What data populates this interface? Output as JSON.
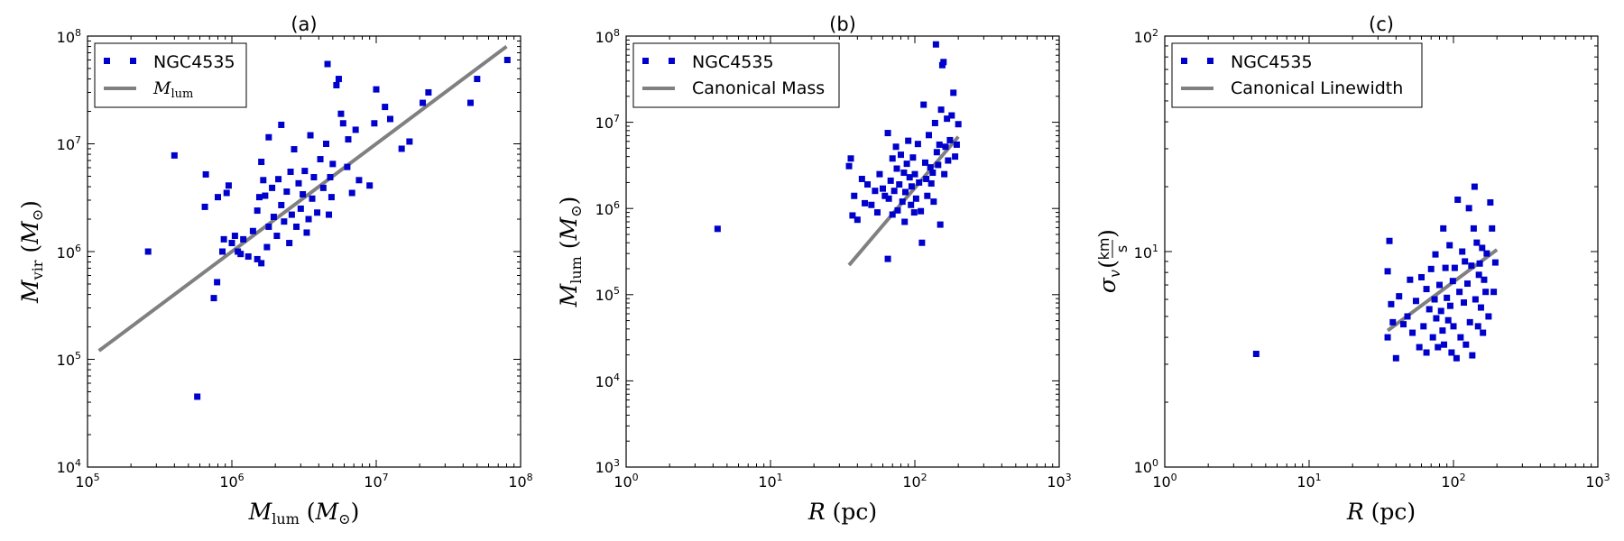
{
  "colors": {
    "point": "#0000cc",
    "fit_line": "#808080"
  },
  "chart_data": [
    {
      "type": "scatter",
      "panel": "(a)",
      "title": "(a)",
      "xlabel": "M_lum (M_⊙)",
      "ylabel": "M_vir (M_⊙)",
      "xscale": "log",
      "yscale": "log",
      "xlim": [
        100000,
        100000000
      ],
      "ylim": [
        10000,
        100000000
      ],
      "xticks": [
        "10^5",
        "10^6",
        "10^7",
        "10^8"
      ],
      "yticks": [
        "10^4",
        "10^5",
        "10^6",
        "10^7",
        "10^8"
      ],
      "legend_position": "top-left",
      "legend": [
        "NGC4535",
        "M_lum"
      ],
      "series": [
        {
          "name": "NGC4535",
          "kind": "points",
          "points": [
            [
              263000,
              1000000
            ],
            [
              576000,
              45000
            ],
            [
              400000,
              7800000
            ],
            [
              650000,
              2600000
            ],
            [
              660000,
              5200000
            ],
            [
              750000,
              370000
            ],
            [
              790000,
              520000
            ],
            [
              800000,
              3200000
            ],
            [
              860000,
              1000000
            ],
            [
              880000,
              1300000
            ],
            [
              920000,
              3500000
            ],
            [
              950000,
              4100000
            ],
            [
              1000000,
              1200000
            ],
            [
              1050000,
              1400000
            ],
            [
              1100000,
              1000000
            ],
            [
              1150000,
              950000
            ],
            [
              1200000,
              1300000
            ],
            [
              1300000,
              900000
            ],
            [
              1400000,
              1550000
            ],
            [
              1500000,
              850000
            ],
            [
              1500000,
              2400000
            ],
            [
              1550000,
              3200000
            ],
            [
              1600000,
              6800000
            ],
            [
              1600000,
              780000
            ],
            [
              1650000,
              4600000
            ],
            [
              1700000,
              3300000
            ],
            [
              1750000,
              1100000
            ],
            [
              1800000,
              1700000
            ],
            [
              1800000,
              11500000
            ],
            [
              1900000,
              3900000
            ],
            [
              1950000,
              2100000
            ],
            [
              2050000,
              1400000
            ],
            [
              2100000,
              4700000
            ],
            [
              2200000,
              2700000
            ],
            [
              2200000,
              15000000
            ],
            [
              2300000,
              1900000
            ],
            [
              2400000,
              3600000
            ],
            [
              2500000,
              1200000
            ],
            [
              2550000,
              5500000
            ],
            [
              2600000,
              2200000
            ],
            [
              2700000,
              8900000
            ],
            [
              2800000,
              1700000
            ],
            [
              2900000,
              4300000
            ],
            [
              3000000,
              2500000
            ],
            [
              3100000,
              3400000
            ],
            [
              3200000,
              5600000
            ],
            [
              3300000,
              1500000
            ],
            [
              3400000,
              2000000
            ],
            [
              3500000,
              12000000
            ],
            [
              3600000,
              3100000
            ],
            [
              3700000,
              4900000
            ],
            [
              3900000,
              2300000
            ],
            [
              4100000,
              7200000
            ],
            [
              4300000,
              3900000
            ],
            [
              4500000,
              10000000
            ],
            [
              4600000,
              55000000
            ],
            [
              4700000,
              2200000
            ],
            [
              4800000,
              4900000
            ],
            [
              4900000,
              3200000
            ],
            [
              5000000,
              6500000
            ],
            [
              5300000,
              35000000
            ],
            [
              5500000,
              40000000
            ],
            [
              5700000,
              19000000
            ],
            [
              5900000,
              15500000
            ],
            [
              6300000,
              6100000
            ],
            [
              6400000,
              11000000
            ],
            [
              6800000,
              3500000
            ],
            [
              7200000,
              13500000
            ],
            [
              7600000,
              4600000
            ],
            [
              9000000,
              4100000
            ],
            [
              9700000,
              15500000
            ],
            [
              10000000,
              32000000
            ],
            [
              11500000,
              22000000
            ],
            [
              12500000,
              17000000
            ],
            [
              15000000,
              9000000
            ],
            [
              17000000,
              10500000
            ],
            [
              21000000,
              24000000
            ],
            [
              23000000,
              30000000
            ],
            [
              45000000,
              24000000
            ],
            [
              50000000,
              40000000
            ],
            [
              81000000,
              60000000
            ]
          ]
        },
        {
          "name": "M_lum",
          "kind": "line",
          "points": [
            [
              120000,
              120000
            ],
            [
              80000000,
              80000000
            ]
          ]
        }
      ]
    },
    {
      "type": "scatter",
      "panel": "(b)",
      "title": "(b)",
      "xlabel": "R (pc)",
      "ylabel": "M_lum (M_⊙)",
      "xscale": "log",
      "yscale": "log",
      "xlim": [
        1,
        1000
      ],
      "ylim": [
        1000,
        100000000
      ],
      "xticks": [
        "10^0",
        "10^1",
        "10^2",
        "10^3"
      ],
      "yticks": [
        "10^3",
        "10^4",
        "10^5",
        "10^6",
        "10^7",
        "10^8"
      ],
      "legend_position": "top-left",
      "legend": [
        "NGC4535",
        "Canonical Mass"
      ],
      "series": [
        {
          "name": "NGC4535",
          "kind": "points",
          "points": [
            [
              4.3,
              580000
            ],
            [
              35,
              3100000
            ],
            [
              36,
              3800000
            ],
            [
              37,
              830000
            ],
            [
              38,
              1400000
            ],
            [
              40,
              740000
            ],
            [
              43,
              2200000
            ],
            [
              45,
              1150000
            ],
            [
              47,
              1900000
            ],
            [
              50,
              1100000
            ],
            [
              53,
              1600000
            ],
            [
              55,
              900000
            ],
            [
              57,
              2500000
            ],
            [
              60,
              1700000
            ],
            [
              62,
              1400000
            ],
            [
              65,
              7500000
            ],
            [
              65,
              260000
            ],
            [
              66,
              1300000
            ],
            [
              68,
              2100000
            ],
            [
              70,
              3800000
            ],
            [
              70,
              850000
            ],
            [
              72,
              1600000
            ],
            [
              74,
              5200000
            ],
            [
              75,
              2900000
            ],
            [
              76,
              950000
            ],
            [
              78,
              1900000
            ],
            [
              80,
              4200000
            ],
            [
              82,
              1200000
            ],
            [
              84,
              2600000
            ],
            [
              85,
              700000
            ],
            [
              86,
              1550000
            ],
            [
              88,
              3300000
            ],
            [
              90,
              6100000
            ],
            [
              92,
              2300000
            ],
            [
              94,
              1100000
            ],
            [
              95,
              1800000
            ],
            [
              97,
              3900000
            ],
            [
              99,
              900000
            ],
            [
              100,
              2500000
            ],
            [
              102,
              1300000
            ],
            [
              105,
              5600000
            ],
            [
              107,
              2000000
            ],
            [
              110,
              930000
            ],
            [
              112,
              400000
            ],
            [
              115,
              16000000
            ],
            [
              118,
              3400000
            ],
            [
              120,
              2200000
            ],
            [
              122,
              1400000
            ],
            [
              125,
              7100000
            ],
            [
              128,
              3000000
            ],
            [
              130,
              1950000
            ],
            [
              133,
              2600000
            ],
            [
              135,
              1200000
            ],
            [
              138,
              9800000
            ],
            [
              140,
              80000000
            ],
            [
              142,
              4500000
            ],
            [
              145,
              3200000
            ],
            [
              148,
              5500000
            ],
            [
              150,
              650000
            ],
            [
              152,
              14000000
            ],
            [
              155,
              46000000
            ],
            [
              158,
              50000000
            ],
            [
              160,
              2500000
            ],
            [
              163,
              5200000
            ],
            [
              167,
              11000000
            ],
            [
              170,
              3600000
            ],
            [
              175,
              6200000
            ],
            [
              180,
              12000000
            ],
            [
              185,
              22000000
            ],
            [
              190,
              4000000
            ],
            [
              195,
              5500000
            ],
            [
              200,
              9500000
            ]
          ]
        },
        {
          "name": "Canonical Mass",
          "kind": "line",
          "points": [
            [
              35,
              220000
            ],
            [
              200,
              6800000
            ]
          ]
        }
      ]
    },
    {
      "type": "scatter",
      "panel": "(c)",
      "title": "(c)",
      "xlabel": "R (pc)",
      "ylabel": "σ_v (km/s)",
      "xscale": "log",
      "yscale": "log",
      "xlim": [
        1,
        1000
      ],
      "ylim": [
        1,
        100
      ],
      "xticks": [
        "10^0",
        "10^1",
        "10^2",
        "10^3"
      ],
      "yticks": [
        "10^0",
        "10^1",
        "10^2"
      ],
      "legend_position": "top-left",
      "legend": [
        "NGC4535",
        "Canonical Linewidth"
      ],
      "series": [
        {
          "name": "NGC4535",
          "kind": "points",
          "points": [
            [
              4.3,
              3.35
            ],
            [
              35,
              4.0
            ],
            [
              35,
              8.1
            ],
            [
              36,
              11.2
            ],
            [
              37,
              5.7
            ],
            [
              38,
              4.7
            ],
            [
              40,
              3.2
            ],
            [
              42,
              6.2
            ],
            [
              45,
              4.6
            ],
            [
              48,
              5.0
            ],
            [
              50,
              7.4
            ],
            [
              52,
              4.2
            ],
            [
              55,
              5.9
            ],
            [
              58,
              3.6
            ],
            [
              60,
              7.6
            ],
            [
              62,
              4.5
            ],
            [
              65,
              6.7
            ],
            [
              65,
              3.4
            ],
            [
              68,
              5.4
            ],
            [
              70,
              8.3
            ],
            [
              72,
              4.0
            ],
            [
              74,
              6.0
            ],
            [
              75,
              9.7
            ],
            [
              76,
              4.9
            ],
            [
              78,
              3.6
            ],
            [
              80,
              7.0
            ],
            [
              82,
              5.3
            ],
            [
              84,
              4.3
            ],
            [
              85,
              12.8
            ],
            [
              86,
              3.7
            ],
            [
              88,
              8.4
            ],
            [
              90,
              6.1
            ],
            [
              92,
              4.8
            ],
            [
              94,
              10.7
            ],
            [
              95,
              5.6
            ],
            [
              97,
              3.4
            ],
            [
              99,
              7.3
            ],
            [
              100,
              4.5
            ],
            [
              102,
              8.4
            ],
            [
              105,
              3.2
            ],
            [
              107,
              17.4
            ],
            [
              110,
              6.5
            ],
            [
              112,
              4.0
            ],
            [
              115,
              10.0
            ],
            [
              118,
              5.8
            ],
            [
              120,
              9.0
            ],
            [
              122,
              3.7
            ],
            [
              125,
              7.1
            ],
            [
              128,
              15.9
            ],
            [
              130,
              4.7
            ],
            [
              133,
              8.6
            ],
            [
              135,
              3.3
            ],
            [
              138,
              12.8
            ],
            [
              140,
              20.0
            ],
            [
              142,
              6.0
            ],
            [
              145,
              11.0
            ],
            [
              148,
              4.5
            ],
            [
              150,
              7.8
            ],
            [
              152,
              8.8
            ],
            [
              155,
              5.5
            ],
            [
              158,
              10.4
            ],
            [
              160,
              4.2
            ],
            [
              163,
              7.4
            ],
            [
              167,
              6.5
            ],
            [
              170,
              9.8
            ],
            [
              175,
              5.0
            ],
            [
              180,
              16.9
            ],
            [
              185,
              12.8
            ],
            [
              190,
              6.5
            ],
            [
              195,
              8.9
            ]
          ]
        },
        {
          "name": "Canonical Linewidth",
          "kind": "line",
          "points": [
            [
              35,
              4.3
            ],
            [
              200,
              10.2
            ]
          ]
        }
      ]
    }
  ]
}
